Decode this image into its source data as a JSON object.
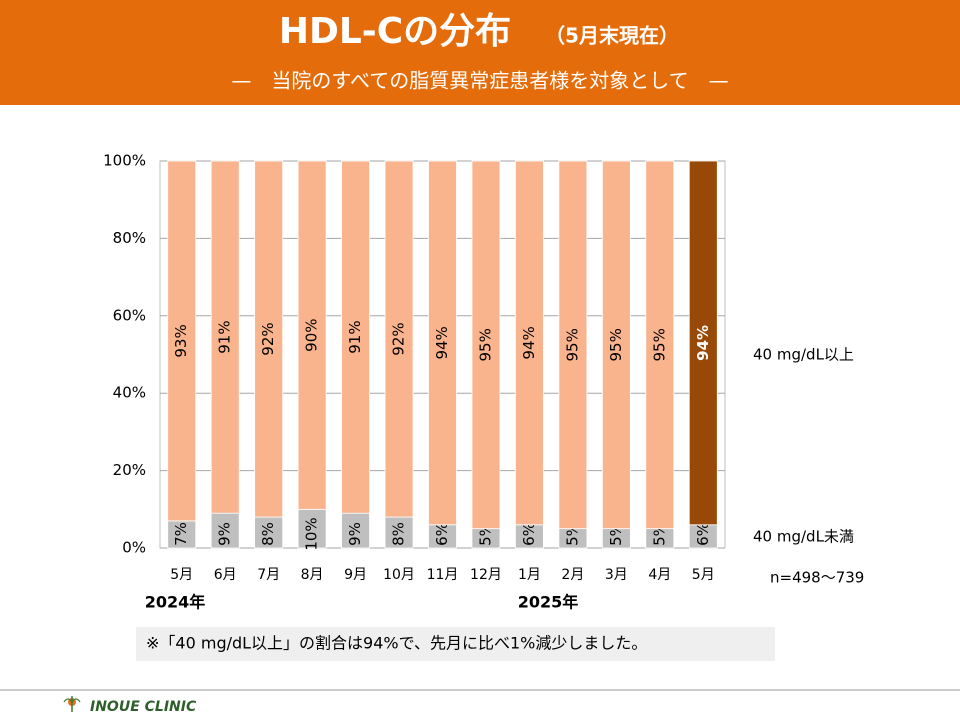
{
  "header": {
    "title": "HDL-Cの分布",
    "title_note": "（5月末現在）",
    "subtitle": "—　当院のすべての脂質異常症患者様を対象として　—"
  },
  "chart_data": {
    "type": "stacked_bar",
    "categories": [
      "5月",
      "6月",
      "7月",
      "8月",
      "9月",
      "10月",
      "11月",
      "12月",
      "1月",
      "2月",
      "3月",
      "4月",
      "5月"
    ],
    "year_labels": [
      "2024年",
      "2025年"
    ],
    "series": [
      {
        "name": "40 mg/dL未満",
        "color": "#bfbfbf",
        "values": [
          7,
          9,
          8,
          10,
          9,
          8,
          6,
          5,
          6,
          5,
          5,
          5,
          6
        ],
        "value_labels": [
          "7%",
          "9%",
          "8%",
          "10%",
          "9%",
          "8%",
          "6%",
          "5%",
          "6%",
          "5%",
          "5%",
          "5%",
          "6%"
        ]
      },
      {
        "name": "40 mg/dL以上",
        "colors": [
          "#f9b38d",
          "#f9b38d",
          "#f9b38d",
          "#f9b38d",
          "#f9b38d",
          "#f9b38d",
          "#f9b38d",
          "#f9b38d",
          "#f9b38d",
          "#f9b38d",
          "#f9b38d",
          "#f9b38d",
          "#984807"
        ],
        "values": [
          93,
          91,
          92,
          90,
          91,
          92,
          94,
          95,
          94,
          95,
          95,
          95,
          94
        ],
        "value_labels": [
          "93%",
          "91%",
          "92%",
          "90%",
          "91%",
          "92%",
          "94%",
          "95%",
          "94%",
          "95%",
          "95%",
          "95%",
          "94%"
        ]
      }
    ],
    "ylim": [
      0,
      100
    ],
    "yticks": [
      {
        "value": 0,
        "label": "0%"
      },
      {
        "value": 20,
        "label": "20%"
      },
      {
        "value": 40,
        "label": "40%"
      },
      {
        "value": 60,
        "label": "60%"
      },
      {
        "value": 80,
        "label": "80%"
      },
      {
        "value": 100,
        "label": "100%"
      }
    ],
    "grid": true,
    "sample_note": "n=498～739"
  },
  "note": "※「40 mg/dL以上」の割合は94%で、先月に比べ1%減少しました。",
  "footer": {
    "clinic": "INOUE CLINIC"
  }
}
